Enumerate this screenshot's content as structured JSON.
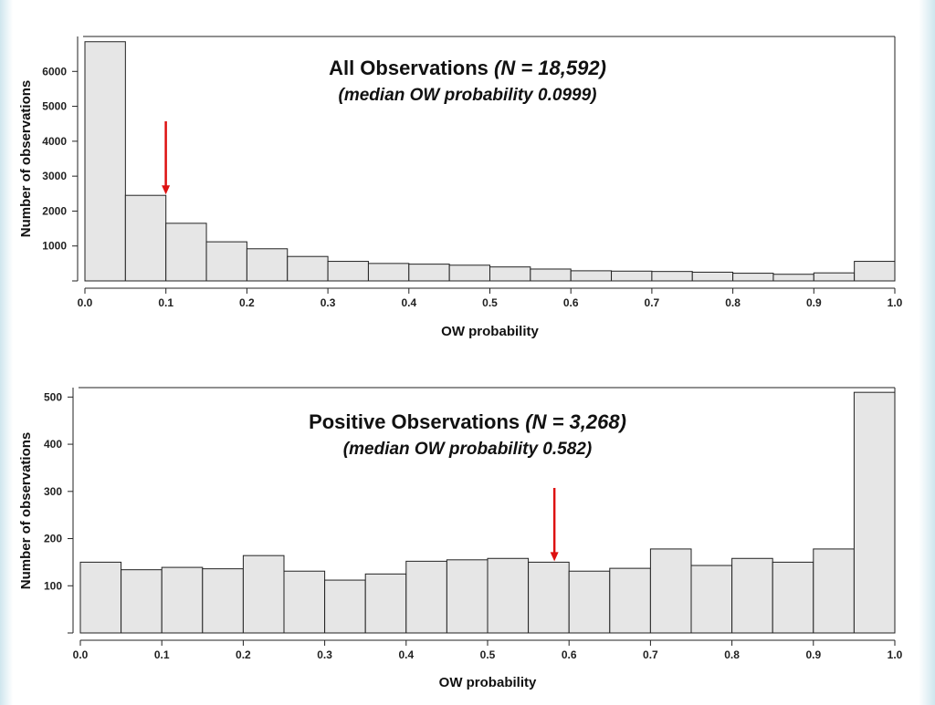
{
  "chart_data": [
    {
      "type": "bar",
      "title": "All Observations",
      "title_n": "(N = 18,592)",
      "subtitle": "(median OW probability 0.0999)",
      "xlabel": "OW probability",
      "ylabel": "Number of observations",
      "xlim": [
        0,
        1
      ],
      "ylim": [
        0,
        7000
      ],
      "xticks": [
        "0.0",
        "0.1",
        "0.2",
        "0.3",
        "0.4",
        "0.5",
        "0.6",
        "0.7",
        "0.8",
        "0.9",
        "1.0"
      ],
      "yticks": [
        "1000",
        "2000",
        "3000",
        "4000",
        "5000",
        "6000"
      ],
      "bin_width": 0.05,
      "bin_starts": [
        0.0,
        0.05,
        0.1,
        0.15,
        0.2,
        0.25,
        0.3,
        0.35,
        0.4,
        0.45,
        0.5,
        0.55,
        0.6,
        0.65,
        0.7,
        0.75,
        0.8,
        0.85,
        0.9,
        0.95
      ],
      "values": [
        6850,
        2450,
        1650,
        1120,
        920,
        700,
        560,
        500,
        480,
        450,
        400,
        340,
        290,
        280,
        270,
        250,
        220,
        190,
        230,
        560
      ],
      "median": 0.0999,
      "arrow_color": "#dd1111"
    },
    {
      "type": "bar",
      "title": "Positive Observations",
      "title_n": "(N = 3,268)",
      "subtitle": "(median OW probability 0.582)",
      "xlabel": "OW probability",
      "ylabel": "Number of observations",
      "xlim": [
        0,
        1
      ],
      "ylim": [
        0,
        520
      ],
      "xticks": [
        "0.0",
        "0.1",
        "0.2",
        "0.3",
        "0.4",
        "0.5",
        "0.6",
        "0.7",
        "0.8",
        "0.9",
        "1.0"
      ],
      "yticks": [
        "100",
        "200",
        "300",
        "400",
        "500"
      ],
      "bin_width": 0.05,
      "bin_starts": [
        0.0,
        0.05,
        0.1,
        0.15,
        0.2,
        0.25,
        0.3,
        0.35,
        0.4,
        0.45,
        0.5,
        0.55,
        0.6,
        0.65,
        0.7,
        0.75,
        0.8,
        0.85,
        0.9,
        0.95
      ],
      "values": [
        150,
        134,
        139,
        136,
        164,
        131,
        112,
        125,
        152,
        155,
        158,
        150,
        131,
        137,
        178,
        143,
        158,
        150,
        178,
        510
      ],
      "median": 0.582,
      "arrow_color": "#dd1111"
    }
  ]
}
